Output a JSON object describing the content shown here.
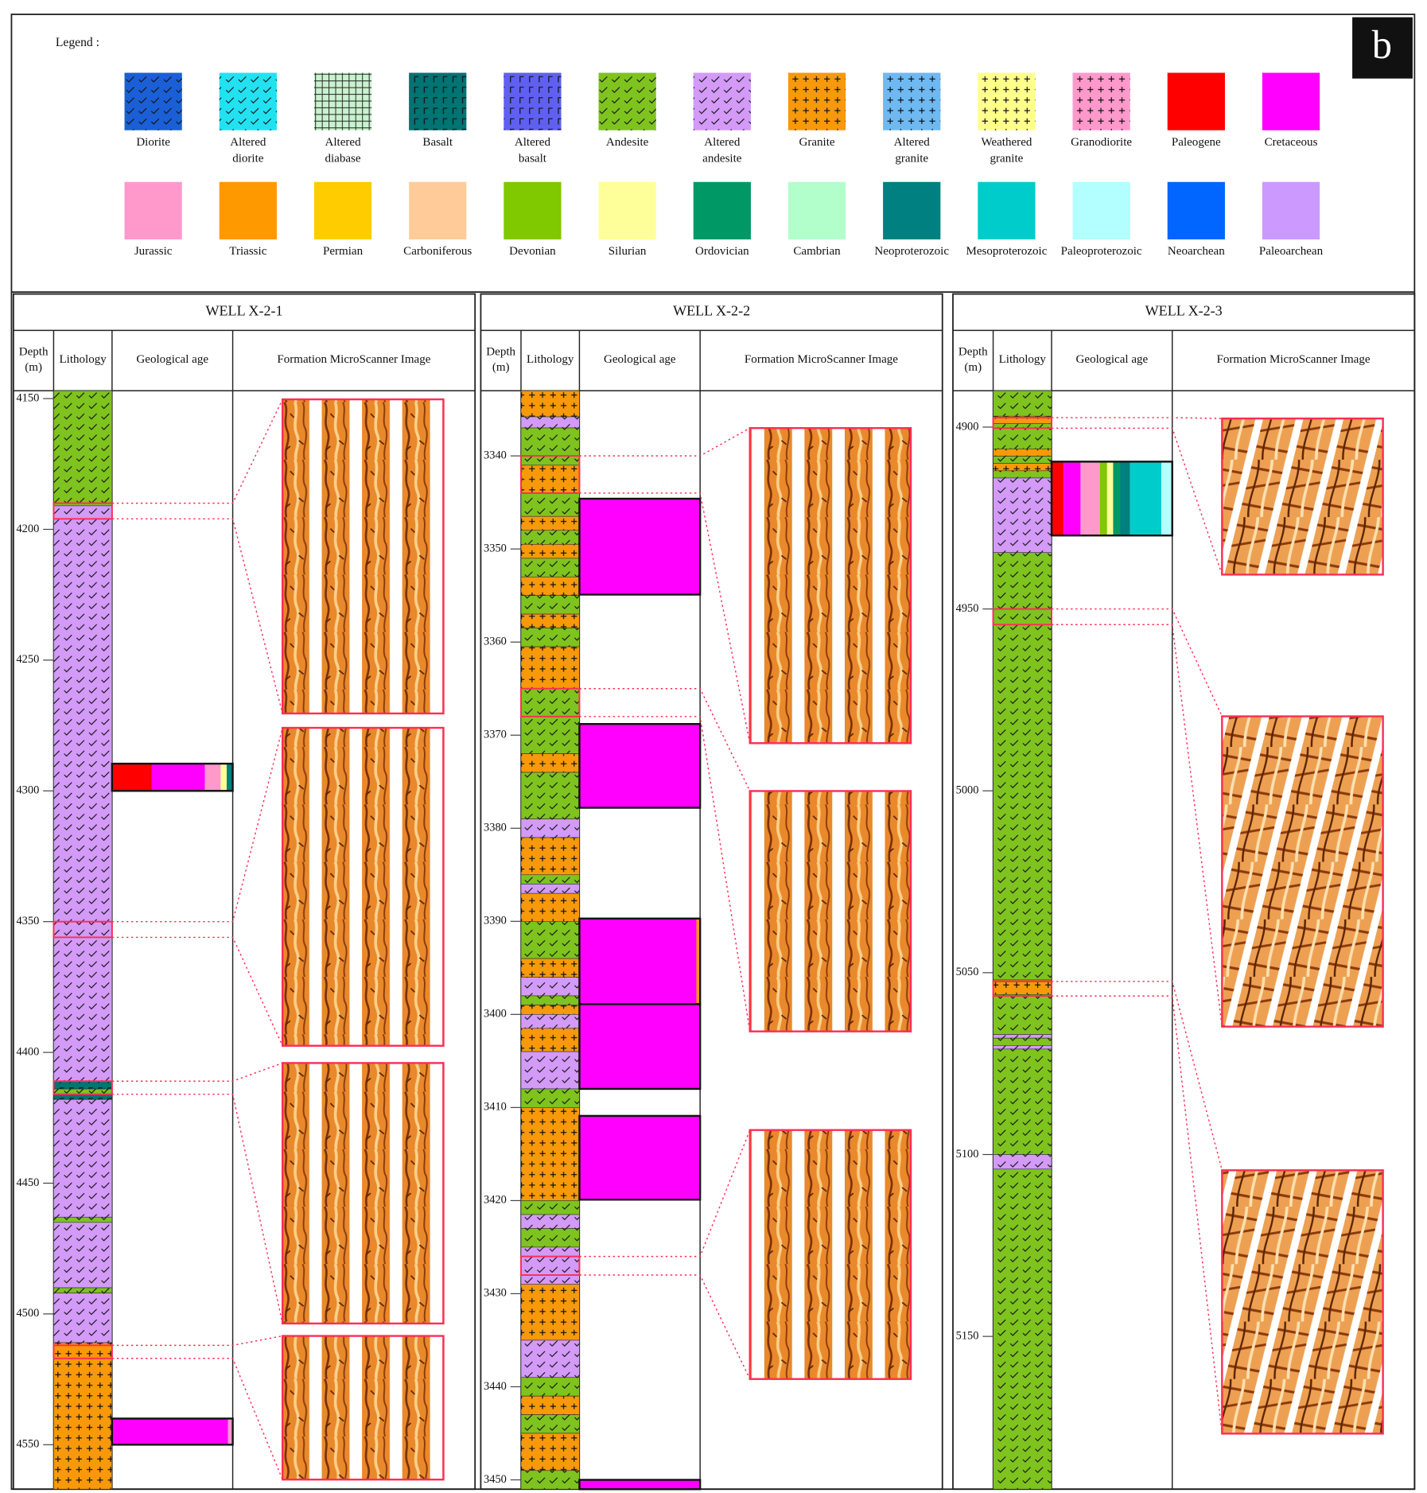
{
  "legend": {
    "title": "Legend :",
    "badge": "b",
    "items": [
      {
        "label": [
          "Diorite"
        ],
        "color": "#1b5fd6",
        "pattern": "tick"
      },
      {
        "label": [
          "Altered",
          "diorite"
        ],
        "color": "#22e2f2",
        "pattern": "tick"
      },
      {
        "label": [
          "Altered",
          "diabase"
        ],
        "color": "#c9f2cf",
        "pattern": "grid"
      },
      {
        "label": [
          "Basalt"
        ],
        "color": "#007373",
        "pattern": "hook"
      },
      {
        "label": [
          "Altered",
          "basalt"
        ],
        "color": "#5f5ff2",
        "pattern": "hook"
      },
      {
        "label": [
          "Andesite"
        ],
        "color": "#7fc31f",
        "pattern": "tick"
      },
      {
        "label": [
          "Altered",
          "andesite"
        ],
        "color": "#d39af7",
        "pattern": "tick"
      },
      {
        "label": [
          "Granite"
        ],
        "color": "#f7990a",
        "pattern": "plus"
      },
      {
        "label": [
          "Altered",
          "granite"
        ],
        "color": "#6fb9f2",
        "pattern": "plus"
      },
      {
        "label": [
          "Weathered",
          "granite"
        ],
        "color": "#ffff8c",
        "pattern": "plus"
      },
      {
        "label": [
          "Granodiorite"
        ],
        "color": "#ff99cc",
        "pattern": "plus"
      },
      {
        "label": [
          "Paleogene"
        ],
        "color": "#ff0000"
      },
      {
        "label": [
          "Cretaceous"
        ],
        "color": "#ff00ff"
      },
      {
        "label": [
          "Jurassic"
        ],
        "color": "#ff99cc"
      },
      {
        "label": [
          "Triassic"
        ],
        "color": "#ff9900"
      },
      {
        "label": [
          "Permian"
        ],
        "color": "#ffcc00"
      },
      {
        "label": [
          "Carboniferous"
        ],
        "color": "#ffcc99"
      },
      {
        "label": [
          "Devonian"
        ],
        "color": "#80c800"
      },
      {
        "label": [
          "Silurian"
        ],
        "color": "#ffff99"
      },
      {
        "label": [
          "Ordovician"
        ],
        "color": "#009966"
      },
      {
        "label": [
          "Cambrian"
        ],
        "color": "#b3ffcc"
      },
      {
        "label": [
          "Neoproterozoic"
        ],
        "color": "#008080"
      },
      {
        "label": [
          "Mesoproterozoic"
        ],
        "color": "#00cccc"
      },
      {
        "label": [
          "Paleoproterozoic"
        ],
        "color": "#b3ffff"
      },
      {
        "label": [
          "Neoarchean"
        ],
        "color": "#0066ff"
      },
      {
        "label": [
          "Paleoarchean"
        ],
        "color": "#cc99ff"
      }
    ]
  },
  "columns": [
    [
      "Depth",
      "(m)"
    ],
    [
      "Lithology"
    ],
    [
      "Geological age"
    ],
    [
      "Formation MicroScanner Image"
    ]
  ],
  "wells": [
    {
      "title": "WELL X-2-1",
      "ylim": [
        4147,
        4567
      ],
      "yticks": [
        4150,
        4200,
        4250,
        4300,
        4350,
        4400,
        4450,
        4500,
        4550
      ],
      "lithology": [
        {
          "rock": "Andesite",
          "top": 4147,
          "bottom": 4191
        },
        {
          "rock": "Altered andesite",
          "top": 4191,
          "bottom": 4411
        },
        {
          "rock": "Basalt",
          "top": 4411,
          "bottom": 4414
        },
        {
          "rock": "Andesite",
          "top": 4414,
          "bottom": 4416
        },
        {
          "rock": "Basalt",
          "top": 4416,
          "bottom": 4418
        },
        {
          "rock": "Altered andesite",
          "top": 4418,
          "bottom": 4463
        },
        {
          "rock": "Andesite",
          "top": 4463,
          "bottom": 4465
        },
        {
          "rock": "Altered andesite",
          "top": 4465,
          "bottom": 4490
        },
        {
          "rock": "Andesite",
          "top": 4490,
          "bottom": 4492
        },
        {
          "rock": "Altered andesite",
          "top": 4492,
          "bottom": 4511
        },
        {
          "rock": "Granite",
          "top": 4511,
          "bottom": 4567
        }
      ],
      "highlights": [
        {
          "top": 4190,
          "bottom": 4196
        },
        {
          "top": 4350,
          "bottom": 4356
        },
        {
          "top": 4411,
          "bottom": 4416
        },
        {
          "top": 4512,
          "bottom": 4517
        }
      ],
      "age_bars": [
        {
          "top": 4289.6,
          "bottom": 4300,
          "segments": [
            {
              "age": "Paleogene",
              "percent": 33
            },
            {
              "age": "Cretaceous",
              "percent": 44
            },
            {
              "age": "Jurassic",
              "percent": 13
            },
            {
              "age": "Silurian",
              "percent": 5
            },
            {
              "age": "Neoproterozoic",
              "percent": 5
            }
          ]
        },
        {
          "top": 4540,
          "bottom": 4550,
          "segments": [
            {
              "age": "Cretaceous",
              "percent": 96
            },
            {
              "age": "Jurassic",
              "percent": 4
            }
          ]
        }
      ]
    },
    {
      "title": "WELL X-2-2",
      "ylim": [
        3333,
        3451
      ],
      "yticks": [
        3340,
        3350,
        3360,
        3370,
        3380,
        3390,
        3400,
        3410,
        3420,
        3430,
        3440,
        3450
      ],
      "lithology": [
        {
          "rock": "Granite",
          "top": 3333,
          "bottom": 3335.8
        },
        {
          "rock": "Altered andesite",
          "top": 3335.8,
          "bottom": 3337
        },
        {
          "rock": "Andesite",
          "top": 3337,
          "bottom": 3341
        },
        {
          "rock": "Granite",
          "top": 3341,
          "bottom": 3344
        },
        {
          "rock": "Andesite",
          "top": 3344,
          "bottom": 3346.5
        },
        {
          "rock": "Granite",
          "top": 3346.5,
          "bottom": 3348
        },
        {
          "rock": "Andesite",
          "top": 3348,
          "bottom": 3349.5
        },
        {
          "rock": "Granite",
          "top": 3349.5,
          "bottom": 3351
        },
        {
          "rock": "Andesite",
          "top": 3351,
          "bottom": 3353
        },
        {
          "rock": "Granite",
          "top": 3353,
          "bottom": 3355
        },
        {
          "rock": "Andesite",
          "top": 3355,
          "bottom": 3357
        },
        {
          "rock": "Granite",
          "top": 3357,
          "bottom": 3358.5
        },
        {
          "rock": "Andesite",
          "top": 3358.5,
          "bottom": 3360.5
        },
        {
          "rock": "Granite",
          "top": 3360.5,
          "bottom": 3365
        },
        {
          "rock": "Andesite",
          "top": 3365,
          "bottom": 3372
        },
        {
          "rock": "Granite",
          "top": 3372,
          "bottom": 3374
        },
        {
          "rock": "Andesite",
          "top": 3374,
          "bottom": 3379
        },
        {
          "rock": "Altered andesite",
          "top": 3379,
          "bottom": 3381
        },
        {
          "rock": "Granite",
          "top": 3381,
          "bottom": 3385
        },
        {
          "rock": "Andesite",
          "top": 3385,
          "bottom": 3386
        },
        {
          "rock": "Altered andesite",
          "top": 3386,
          "bottom": 3387
        },
        {
          "rock": "Granite",
          "top": 3387,
          "bottom": 3390
        },
        {
          "rock": "Andesite",
          "top": 3390,
          "bottom": 3394
        },
        {
          "rock": "Granite",
          "top": 3394,
          "bottom": 3396
        },
        {
          "rock": "Altered andesite",
          "top": 3396,
          "bottom": 3398
        },
        {
          "rock": "Andesite",
          "top": 3398,
          "bottom": 3399
        },
        {
          "rock": "Granite",
          "top": 3399,
          "bottom": 3400
        },
        {
          "rock": "Altered andesite",
          "top": 3400,
          "bottom": 3401.5
        },
        {
          "rock": "Granite",
          "top": 3401.5,
          "bottom": 3404
        },
        {
          "rock": "Altered andesite",
          "top": 3404,
          "bottom": 3408
        },
        {
          "rock": "Andesite",
          "top": 3408,
          "bottom": 3410
        },
        {
          "rock": "Granite",
          "top": 3410,
          "bottom": 3420
        },
        {
          "rock": "Andesite",
          "top": 3420,
          "bottom": 3421.5
        },
        {
          "rock": "Altered andesite",
          "top": 3421.5,
          "bottom": 3423
        },
        {
          "rock": "Andesite",
          "top": 3423,
          "bottom": 3425
        },
        {
          "rock": "Altered andesite",
          "top": 3425,
          "bottom": 3429
        },
        {
          "rock": "Granite",
          "top": 3429,
          "bottom": 3435
        },
        {
          "rock": "Altered andesite",
          "top": 3435,
          "bottom": 3439
        },
        {
          "rock": "Andesite",
          "top": 3439,
          "bottom": 3441
        },
        {
          "rock": "Granite",
          "top": 3441,
          "bottom": 3443
        },
        {
          "rock": "Andesite",
          "top": 3443,
          "bottom": 3445
        },
        {
          "rock": "Granite",
          "top": 3445,
          "bottom": 3449
        },
        {
          "rock": "Andesite",
          "top": 3449,
          "bottom": 3451
        }
      ],
      "highlights": [
        {
          "top": 3340,
          "bottom": 3344
        },
        {
          "top": 3365,
          "bottom": 3368
        },
        {
          "top": 3426,
          "bottom": 3428
        }
      ],
      "age_bars": [
        {
          "top": 3344.6,
          "bottom": 3354.9,
          "segments": [
            {
              "age": "Cretaceous",
              "percent": 100
            }
          ]
        },
        {
          "top": 3368.8,
          "bottom": 3377.8,
          "segments": [
            {
              "age": "Cretaceous",
              "percent": 100
            }
          ]
        },
        {
          "top": 3389.7,
          "bottom": 3398.9,
          "segments": [
            {
              "age": "Cretaceous",
              "percent": 97
            },
            {
              "age": "Triassic",
              "percent": 3
            }
          ]
        },
        {
          "top": 3398.9,
          "bottom": 3408,
          "segments": [
            {
              "age": "Cretaceous",
              "percent": 100
            }
          ]
        },
        {
          "top": 3410.9,
          "bottom": 3419.9,
          "segments": [
            {
              "age": "Cretaceous",
              "percent": 100
            }
          ]
        },
        {
          "top": 3450,
          "bottom": 3451,
          "segments": [
            {
              "age": "Cretaceous",
              "percent": 100
            }
          ]
        }
      ]
    },
    {
      "title": "WELL X-2-3",
      "ylim": [
        4890,
        5192
      ],
      "yticks": [
        4900,
        4950,
        5000,
        5050,
        5100,
        5150
      ],
      "lithology": [
        {
          "rock": "Andesite",
          "top": 4890,
          "bottom": 4897
        },
        {
          "rock": "Granite",
          "top": 4897,
          "bottom": 4899
        },
        {
          "rock": "Andesite",
          "top": 4899,
          "bottom": 4906
        },
        {
          "rock": "Granite",
          "top": 4906,
          "bottom": 4908
        },
        {
          "rock": "Andesite",
          "top": 4908,
          "bottom": 4910
        },
        {
          "rock": "Granite",
          "top": 4910,
          "bottom": 4912
        },
        {
          "rock": "Andesite",
          "top": 4912,
          "bottom": 4914
        },
        {
          "rock": "Altered andesite",
          "top": 4914,
          "bottom": 4934.5
        },
        {
          "rock": "Andesite",
          "top": 4934.5,
          "bottom": 5052
        },
        {
          "rock": "Granite",
          "top": 5052,
          "bottom": 5056
        },
        {
          "rock": "Andesite",
          "top": 5056,
          "bottom": 5067
        },
        {
          "rock": "Altered andesite",
          "top": 5067,
          "bottom": 5068
        },
        {
          "rock": "Andesite",
          "top": 5068,
          "bottom": 5070
        },
        {
          "rock": "Altered andesite",
          "top": 5070,
          "bottom": 5071
        },
        {
          "rock": "Andesite",
          "top": 5071,
          "bottom": 5100
        },
        {
          "rock": "Altered andesite",
          "top": 5100,
          "bottom": 5104
        },
        {
          "rock": "Andesite",
          "top": 5104,
          "bottom": 5192
        }
      ],
      "highlights": [
        {
          "top": 4897.4,
          "bottom": 4900.3
        },
        {
          "top": 4950,
          "bottom": 4954.3
        },
        {
          "top": 5052.4,
          "bottom": 5056.4
        }
      ],
      "age_bars": [
        {
          "top": 4909.5,
          "bottom": 4929.8,
          "segments": [
            {
              "age": "Paleogene",
              "percent": 10
            },
            {
              "age": "Cretaceous",
              "percent": 14
            },
            {
              "age": "Jurassic",
              "percent": 16
            },
            {
              "age": "Devonian",
              "percent": 6
            },
            {
              "age": "Silurian",
              "percent": 5
            },
            {
              "age": "Ordovician",
              "percent": 6
            },
            {
              "age": "Neoproterozoic",
              "percent": 8
            },
            {
              "age": "Mesoproterozoic",
              "percent": 26
            },
            {
              "age": "Paleoproterozoic",
              "percent": 9
            }
          ]
        }
      ]
    }
  ]
}
